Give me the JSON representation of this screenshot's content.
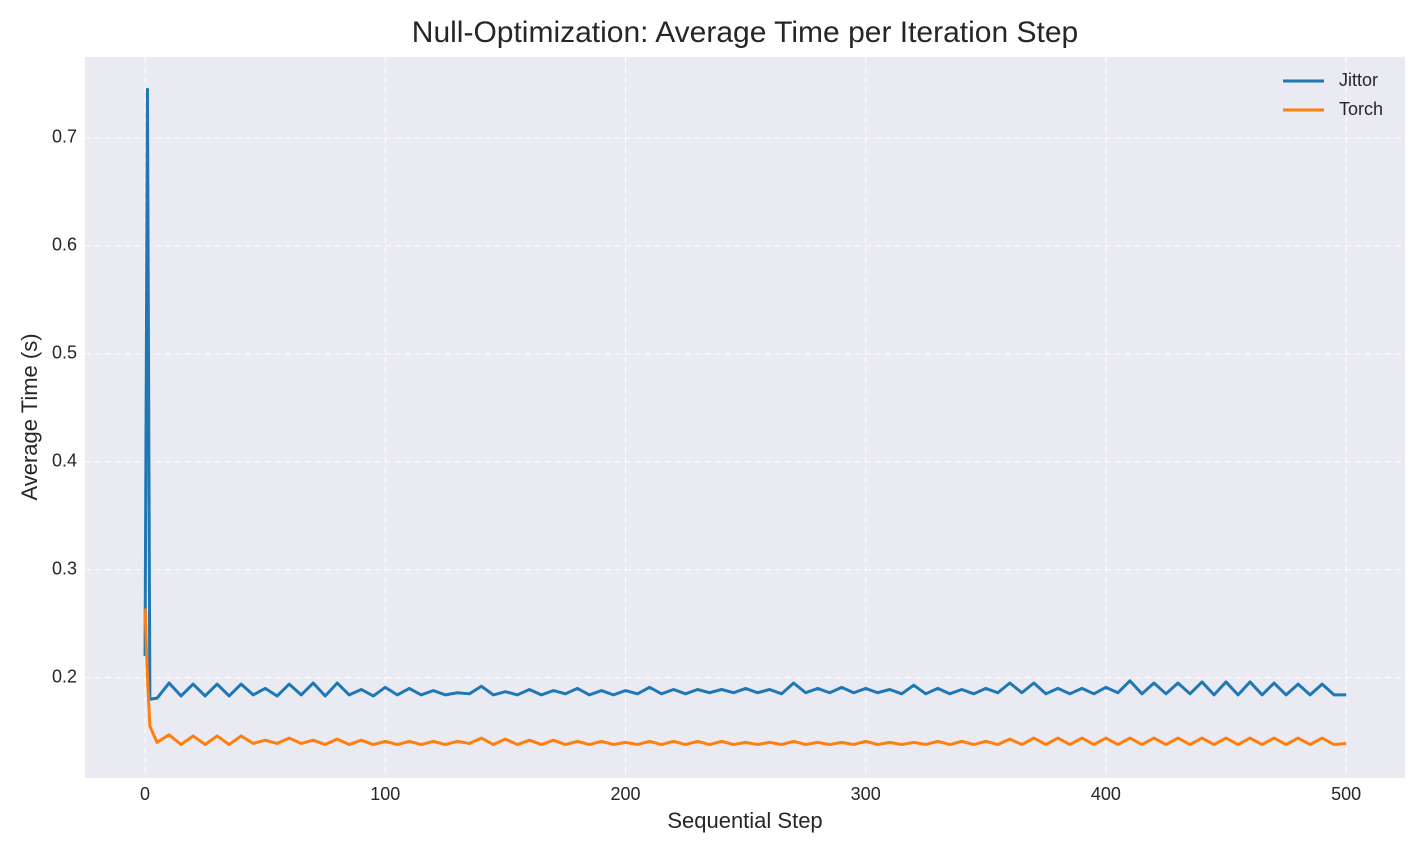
{
  "chart_data": {
    "type": "line",
    "title": "Null-Optimization: Average Time per Iteration Step",
    "x_label": "Sequential Step",
    "y_label": "Average Time (s)",
    "x": [
      0,
      1,
      2,
      5,
      10,
      15,
      20,
      25,
      30,
      35,
      40,
      45,
      50,
      55,
      60,
      65,
      70,
      75,
      80,
      85,
      90,
      95,
      100,
      105,
      110,
      115,
      120,
      125,
      130,
      135,
      140,
      145,
      150,
      155,
      160,
      165,
      170,
      175,
      180,
      185,
      190,
      195,
      200,
      205,
      210,
      215,
      220,
      225,
      230,
      235,
      240,
      245,
      250,
      255,
      260,
      265,
      270,
      275,
      280,
      285,
      290,
      295,
      300,
      305,
      310,
      315,
      320,
      325,
      330,
      335,
      340,
      345,
      350,
      355,
      360,
      365,
      370,
      375,
      380,
      385,
      390,
      395,
      400,
      405,
      410,
      415,
      420,
      425,
      430,
      435,
      440,
      445,
      450,
      455,
      460,
      465,
      470,
      475,
      480,
      485,
      490,
      495,
      500
    ],
    "series": [
      {
        "name": "Jittor",
        "color": "#1f77b4",
        "values": [
          0.22,
          0.745,
          0.18,
          0.181,
          0.195,
          0.183,
          0.194,
          0.183,
          0.194,
          0.183,
          0.194,
          0.184,
          0.19,
          0.183,
          0.194,
          0.184,
          0.195,
          0.183,
          0.195,
          0.184,
          0.189,
          0.183,
          0.191,
          0.184,
          0.19,
          0.184,
          0.188,
          0.184,
          0.186,
          0.185,
          0.192,
          0.184,
          0.187,
          0.184,
          0.189,
          0.184,
          0.188,
          0.185,
          0.19,
          0.184,
          0.188,
          0.184,
          0.188,
          0.185,
          0.191,
          0.185,
          0.189,
          0.185,
          0.189,
          0.186,
          0.189,
          0.186,
          0.19,
          0.186,
          0.189,
          0.185,
          0.195,
          0.186,
          0.19,
          0.186,
          0.191,
          0.186,
          0.19,
          0.186,
          0.189,
          0.185,
          0.193,
          0.185,
          0.19,
          0.185,
          0.189,
          0.185,
          0.19,
          0.186,
          0.195,
          0.186,
          0.195,
          0.185,
          0.19,
          0.185,
          0.19,
          0.185,
          0.191,
          0.186,
          0.197,
          0.185,
          0.195,
          0.185,
          0.195,
          0.185,
          0.196,
          0.184,
          0.196,
          0.184,
          0.196,
          0.184,
          0.195,
          0.184,
          0.194,
          0.184,
          0.194,
          0.184,
          0.184
        ]
      },
      {
        "name": "Torch",
        "color": "#ff7f0e",
        "values": [
          0.264,
          0.2,
          0.155,
          0.14,
          0.147,
          0.138,
          0.146,
          0.138,
          0.146,
          0.138,
          0.146,
          0.139,
          0.142,
          0.139,
          0.144,
          0.139,
          0.142,
          0.138,
          0.143,
          0.138,
          0.142,
          0.138,
          0.141,
          0.138,
          0.141,
          0.138,
          0.141,
          0.138,
          0.141,
          0.139,
          0.144,
          0.138,
          0.143,
          0.138,
          0.142,
          0.138,
          0.142,
          0.138,
          0.141,
          0.138,
          0.141,
          0.138,
          0.14,
          0.138,
          0.141,
          0.138,
          0.141,
          0.138,
          0.141,
          0.138,
          0.141,
          0.138,
          0.14,
          0.138,
          0.14,
          0.138,
          0.141,
          0.138,
          0.14,
          0.138,
          0.14,
          0.138,
          0.141,
          0.138,
          0.14,
          0.138,
          0.14,
          0.138,
          0.141,
          0.138,
          0.141,
          0.138,
          0.141,
          0.138,
          0.143,
          0.138,
          0.144,
          0.138,
          0.144,
          0.138,
          0.144,
          0.138,
          0.144,
          0.138,
          0.144,
          0.138,
          0.144,
          0.138,
          0.144,
          0.138,
          0.144,
          0.138,
          0.144,
          0.138,
          0.144,
          0.138,
          0.144,
          0.138,
          0.144,
          0.138,
          0.144,
          0.138,
          0.139
        ]
      }
    ],
    "xlim": [
      -25,
      524.5
    ],
    "ylim": [
      0.107,
      0.775
    ],
    "xticks": [
      0,
      100,
      200,
      300,
      400,
      500
    ],
    "yticks": [
      0.2,
      0.3,
      0.4,
      0.5,
      0.6,
      0.7
    ],
    "grid": true,
    "legend": "upper right"
  }
}
